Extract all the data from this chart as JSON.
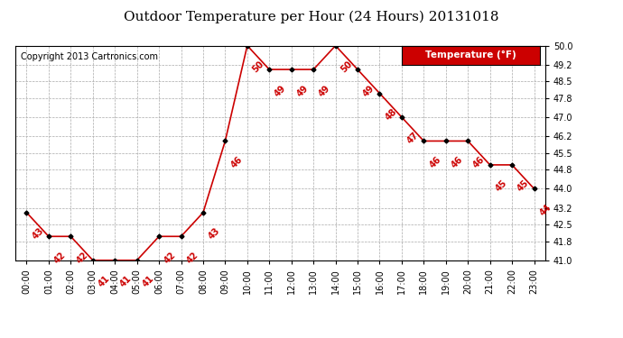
{
  "title": "Outdoor Temperature per Hour (24 Hours) 20131018",
  "copyright_text": "Copyright 2013 Cartronics.com",
  "legend_label": "Temperature (°F)",
  "hours": [
    "00:00",
    "01:00",
    "02:00",
    "03:00",
    "04:00",
    "05:00",
    "06:00",
    "07:00",
    "08:00",
    "09:00",
    "10:00",
    "11:00",
    "12:00",
    "13:00",
    "14:00",
    "15:00",
    "16:00",
    "17:00",
    "18:00",
    "19:00",
    "20:00",
    "21:00",
    "22:00",
    "23:00"
  ],
  "temps": [
    43,
    42,
    42,
    41,
    41,
    41,
    42,
    42,
    43,
    46,
    50,
    49,
    49,
    49,
    50,
    49,
    48,
    47,
    46,
    46,
    46,
    45,
    45,
    44
  ],
  "ylim": [
    41.0,
    50.0
  ],
  "ytick_values": [
    41.0,
    41.8,
    42.5,
    43.2,
    44.0,
    44.8,
    45.5,
    46.2,
    47.0,
    47.8,
    48.5,
    49.2,
    50.0
  ],
  "ytick_labels": [
    "41.0",
    "41.8",
    "42.5",
    "43.2",
    "44.0",
    "44.8",
    "45.5",
    "46.2",
    "47.0",
    "47.8",
    "48.5",
    "49.2",
    "50.0"
  ],
  "line_color": "#cc0000",
  "marker_color": "#000000",
  "bg_color": "#ffffff",
  "grid_color": "#aaaaaa",
  "annotation_color": "#cc0000",
  "legend_bg": "#cc0000",
  "legend_text_color": "#ffffff",
  "title_fontsize": 11,
  "tick_fontsize": 7,
  "annotation_fontsize": 7,
  "copyright_fontsize": 7
}
